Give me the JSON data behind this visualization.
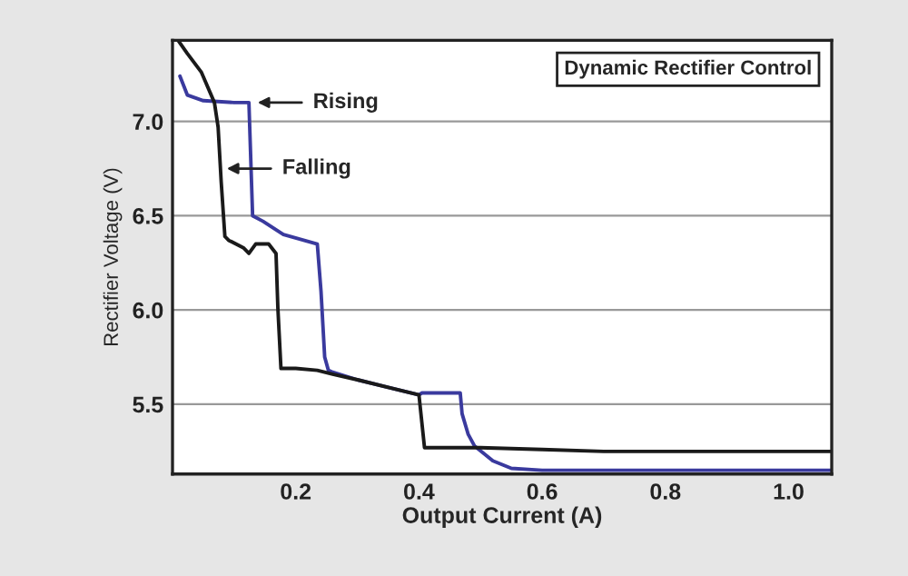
{
  "chart_data": {
    "type": "line",
    "title": "Dynamic Rectifier Control",
    "xlabel": "Output Current (A)",
    "ylabel": "Rectifier Voltage (V)",
    "xlim": [
      0,
      1.07
    ],
    "ylim": [
      5.13,
      7.43
    ],
    "xticks": [
      0.2,
      0.4,
      0.6,
      0.8,
      {
        "value": 1,
        "label": "1.0"
      }
    ],
    "yticks": [
      5.5,
      {
        "value": 6,
        "label": "6.0"
      },
      6.5,
      {
        "value": 7,
        "label": "7.0"
      }
    ],
    "grid": "y",
    "legend": false,
    "marker": "none",
    "line_style": "solid",
    "series": [
      {
        "color": "#3a3a9e",
        "x": [
          0.012,
          0.024,
          0.05,
          0.1,
          0.124,
          0.13,
          0.147,
          0.18,
          0.235,
          0.241,
          0.247,
          0.253,
          0.26,
          0.3,
          0.35,
          0.4,
          0.405,
          0.43,
          0.467,
          0.47,
          0.48,
          0.49,
          0.52,
          0.55,
          0.6,
          0.7,
          0.8,
          0.9,
          1.0,
          1.07
        ],
        "values": [
          7.24,
          7.14,
          7.11,
          7.1,
          7.1,
          6.5,
          6.47,
          6.4,
          6.35,
          6.1,
          5.75,
          5.68,
          5.67,
          5.63,
          5.59,
          5.55,
          5.56,
          5.56,
          5.56,
          5.45,
          5.34,
          5.28,
          5.2,
          5.16,
          5.15,
          5.15,
          5.15,
          5.15,
          5.15,
          5.15
        ]
      },
      {
        "color": "#1a1a1a",
        "x": [
          0.009,
          0.024,
          0.047,
          0.068,
          0.074,
          0.079,
          0.085,
          0.091,
          0.115,
          0.124,
          0.135,
          0.156,
          0.168,
          0.171,
          0.176,
          0.182,
          0.2,
          0.235,
          0.26,
          0.3,
          0.35,
          0.4,
          0.409,
          0.418,
          0.5,
          0.6,
          0.7,
          0.8,
          0.9,
          1.0,
          1.07
        ],
        "values": [
          7.43,
          7.36,
          7.26,
          7.1,
          6.97,
          6.68,
          6.39,
          6.37,
          6.33,
          6.3,
          6.35,
          6.35,
          6.3,
          6.01,
          5.69,
          5.69,
          5.69,
          5.68,
          5.66,
          5.63,
          5.59,
          5.55,
          5.27,
          5.27,
          5.27,
          5.26,
          5.25,
          5.25,
          5.25,
          5.25,
          5.25
        ]
      }
    ],
    "annotations": [
      {
        "text": "Rising",
        "x": 0.138,
        "y": 7.1
      },
      {
        "text": "Falling",
        "x": 0.088,
        "y": 6.75
      }
    ]
  }
}
